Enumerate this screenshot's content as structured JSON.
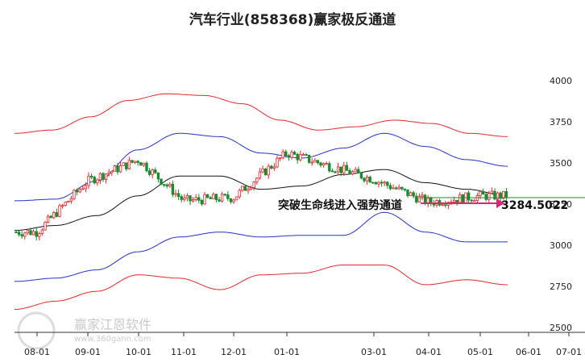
{
  "chart_data": {
    "type": "candlestick",
    "title": "汽车行业(858368)赢家极反通道",
    "y_ticks": [
      "4000",
      "3750",
      "3500",
      "3250",
      "3000",
      "2750",
      "2500"
    ],
    "x_ticks": [
      "08-01",
      "09-01",
      "10-01",
      "11-01",
      "12-01",
      "01-01",
      "03-01",
      "04-01",
      "05-01",
      "06-01",
      "07-01"
    ],
    "ylim": [
      2500,
      4000
    ],
    "grid": false,
    "annotation": "突破生命线进入强势通道",
    "last_price_label": "3284.5022",
    "last_price": 3284.5,
    "colors": {
      "up": "#e8262a",
      "down": "#1b8a2e",
      "outer_band": "#e8262a",
      "inner_band": "#2233cc",
      "mid_line": "#111111",
      "arrow": "#d6287a",
      "price_line": "#1b8a2e"
    },
    "series_points": {
      "outer_upper": [
        3680,
        3700,
        3780,
        3880,
        3920,
        3910,
        3860,
        3760,
        3700,
        3720,
        3760,
        3740,
        3680,
        3660
      ],
      "inner_upper": [
        3270,
        3280,
        3390,
        3580,
        3680,
        3660,
        3560,
        3530,
        3590,
        3680,
        3600,
        3520,
        3480
      ],
      "mid_line": [
        3090,
        3120,
        3180,
        3300,
        3420,
        3420,
        3340,
        3360,
        3430,
        3460,
        3380,
        3340,
        3300
      ],
      "inner_lower": [
        2780,
        2800,
        2850,
        2960,
        3050,
        3080,
        3050,
        3060,
        3060,
        3200,
        3080,
        3020,
        3020
      ],
      "outer_lower": [
        2610,
        2660,
        2720,
        2820,
        2800,
        2730,
        2820,
        2830,
        2880,
        2880,
        2760,
        2790,
        2760
      ]
    },
    "ohlc_samples": {
      "x": [
        "08-01",
        "09-01",
        "10-01",
        "11-01",
        "12-01",
        "01-01",
        "03-01",
        "04-01",
        "05-01"
      ],
      "close": [
        3080,
        3390,
        3520,
        3270,
        3290,
        3560,
        3400,
        3260,
        3300
      ]
    }
  },
  "watermark": {
    "text": "赢家江恩软件",
    "url": "www.360gann.com"
  }
}
